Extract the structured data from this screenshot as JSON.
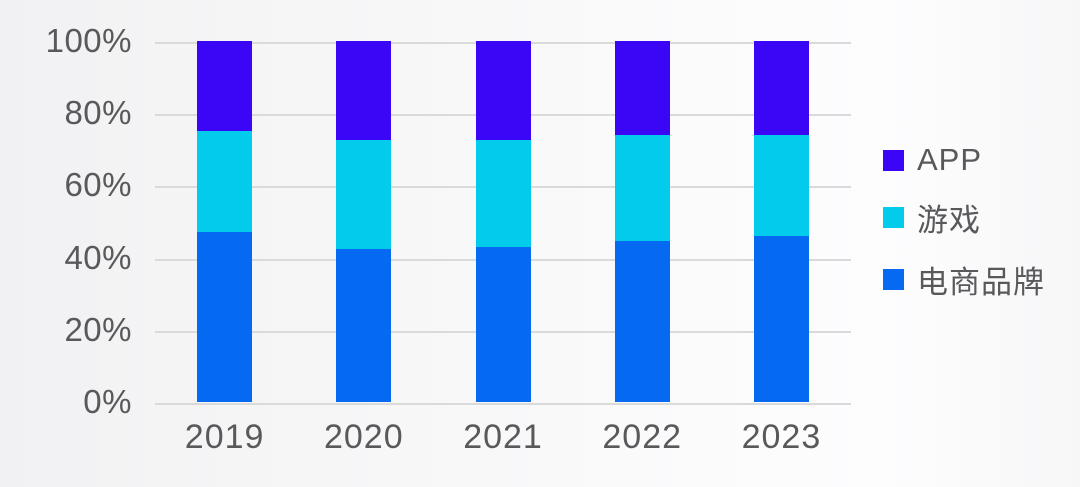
{
  "chart_data": {
    "type": "bar",
    "variant": "100-percent-stacked-column",
    "title": "",
    "xlabel": "",
    "ylabel": "",
    "categories": [
      "2019",
      "2020",
      "2021",
      "2022",
      "2023"
    ],
    "series": [
      {
        "name": "APP",
        "color": "#3B05F6",
        "values": [
          25,
          27.5,
          27.5,
          26,
          26
        ]
      },
      {
        "name": "游戏",
        "color": "#03CBEC",
        "values": [
          28,
          30,
          29.5,
          29.5,
          28
        ]
      },
      {
        "name": "电商品牌",
        "color": "#0569F2",
        "values": [
          47,
          42.5,
          43,
          44.5,
          46
        ]
      }
    ],
    "stack_bottom_to_top": [
      "电商品牌",
      "游戏",
      "APP"
    ],
    "ylim": [
      0,
      100
    ],
    "yticks": [
      100,
      80,
      60,
      40,
      20,
      0
    ],
    "ytick_labels": [
      "100%",
      "80%",
      "60%",
      "40%",
      "20%",
      "0%"
    ],
    "grid": "horizontal",
    "legend_position": "right",
    "legend_order": [
      "APP",
      "游戏",
      "电商品牌"
    ]
  },
  "style_colors": {
    "axis_text": "#58595B",
    "gridline": "#DADADB",
    "background_left": "#F1F1F3",
    "background_right": "#FDFDFE"
  }
}
